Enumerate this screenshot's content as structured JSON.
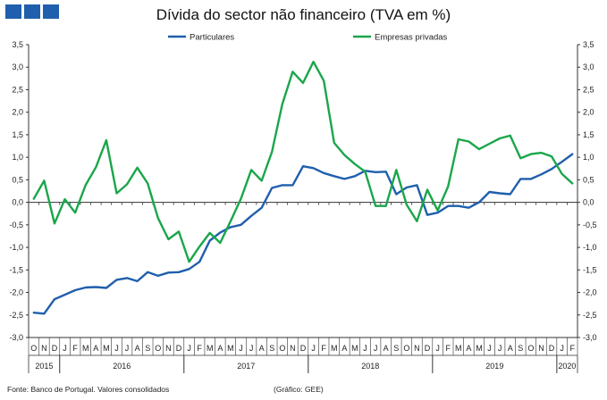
{
  "chart_data": {
    "type": "line",
    "title": "Dívida do sector não financeiro (TVA em %)",
    "xlabel": "",
    "ylabel": "",
    "ylim": [
      -3.0,
      3.5
    ],
    "y_ticks": [
      "3,5",
      "3,0",
      "2,5",
      "2,0",
      "1,5",
      "1,0",
      "0,5",
      "0,0",
      "-0,5",
      "-1,0",
      "-1,5",
      "-2,0",
      "-2,5",
      "-3,0"
    ],
    "y_tick_values": [
      3.5,
      3.0,
      2.5,
      2.0,
      1.5,
      1.0,
      0.5,
      0.0,
      -0.5,
      -1.0,
      -1.5,
      -2.0,
      -2.5,
      -3.0
    ],
    "dual_axis": true,
    "grid": false,
    "legend_position": "top",
    "month_labels": [
      "O",
      "N",
      "D",
      "J",
      "F",
      "M",
      "A",
      "M",
      "J",
      "J",
      "A",
      "S",
      "O",
      "N",
      "D",
      "J",
      "F",
      "M",
      "A",
      "M",
      "J",
      "J",
      "A",
      "S",
      "O",
      "N",
      "D",
      "J",
      "F",
      "M",
      "A",
      "M",
      "J",
      "J",
      "A",
      "S",
      "O",
      "N",
      "D",
      "J",
      "F",
      "M",
      "A",
      "M",
      "J",
      "J",
      "A",
      "S",
      "O",
      "N",
      "D",
      "J",
      "F"
    ],
    "year_groups": [
      {
        "label": "2015",
        "start": 0,
        "end": 2
      },
      {
        "label": "2016",
        "start": 3,
        "end": 14
      },
      {
        "label": "2017",
        "start": 15,
        "end": 26
      },
      {
        "label": "2018",
        "start": 27,
        "end": 38
      },
      {
        "label": "2019",
        "start": 39,
        "end": 50
      },
      {
        "label": "2020",
        "start": 51,
        "end": 52
      }
    ],
    "series": [
      {
        "name": "Particulares",
        "color": "#1f5fad",
        "values": [
          -2.45,
          -2.47,
          -2.15,
          -2.05,
          -1.95,
          -1.89,
          -1.88,
          -1.9,
          -1.72,
          -1.68,
          -1.75,
          -1.55,
          -1.63,
          -1.56,
          -1.55,
          -1.48,
          -1.32,
          -0.85,
          -0.67,
          -0.55,
          -0.5,
          -0.3,
          -0.12,
          0.32,
          0.38,
          0.38,
          0.8,
          0.76,
          0.65,
          0.58,
          0.52,
          0.58,
          0.7,
          0.67,
          0.68,
          0.18,
          0.33,
          0.38,
          -0.28,
          -0.23,
          -0.08,
          -0.08,
          -0.12,
          0.0,
          0.23,
          0.2,
          0.18,
          0.52,
          0.52,
          0.62,
          0.74,
          0.9,
          1.07
        ]
      },
      {
        "name": "Empresas privadas",
        "color": "#1aa64a",
        "values": [
          0.08,
          0.48,
          -0.47,
          0.07,
          -0.23,
          0.38,
          0.78,
          1.38,
          0.2,
          0.4,
          0.77,
          0.42,
          -0.35,
          -0.82,
          -0.65,
          -1.32,
          -0.98,
          -0.68,
          -0.9,
          -0.42,
          0.08,
          0.72,
          0.48,
          1.12,
          2.18,
          2.9,
          2.65,
          3.12,
          2.7,
          1.32,
          1.05,
          0.85,
          0.68,
          -0.08,
          -0.08,
          0.72,
          -0.05,
          -0.42,
          0.28,
          -0.18,
          0.35,
          1.4,
          1.35,
          1.18,
          1.3,
          1.42,
          1.48,
          0.98,
          1.07,
          1.1,
          1.02,
          0.63,
          0.42
        ]
      }
    ]
  },
  "footer": {
    "source": "Fonte: Banco de Portugal. Valores consolidados",
    "credit": "(Gráfico: GEE)"
  },
  "colors": {
    "logo": "#1f5fad",
    "axis": "#333333"
  }
}
